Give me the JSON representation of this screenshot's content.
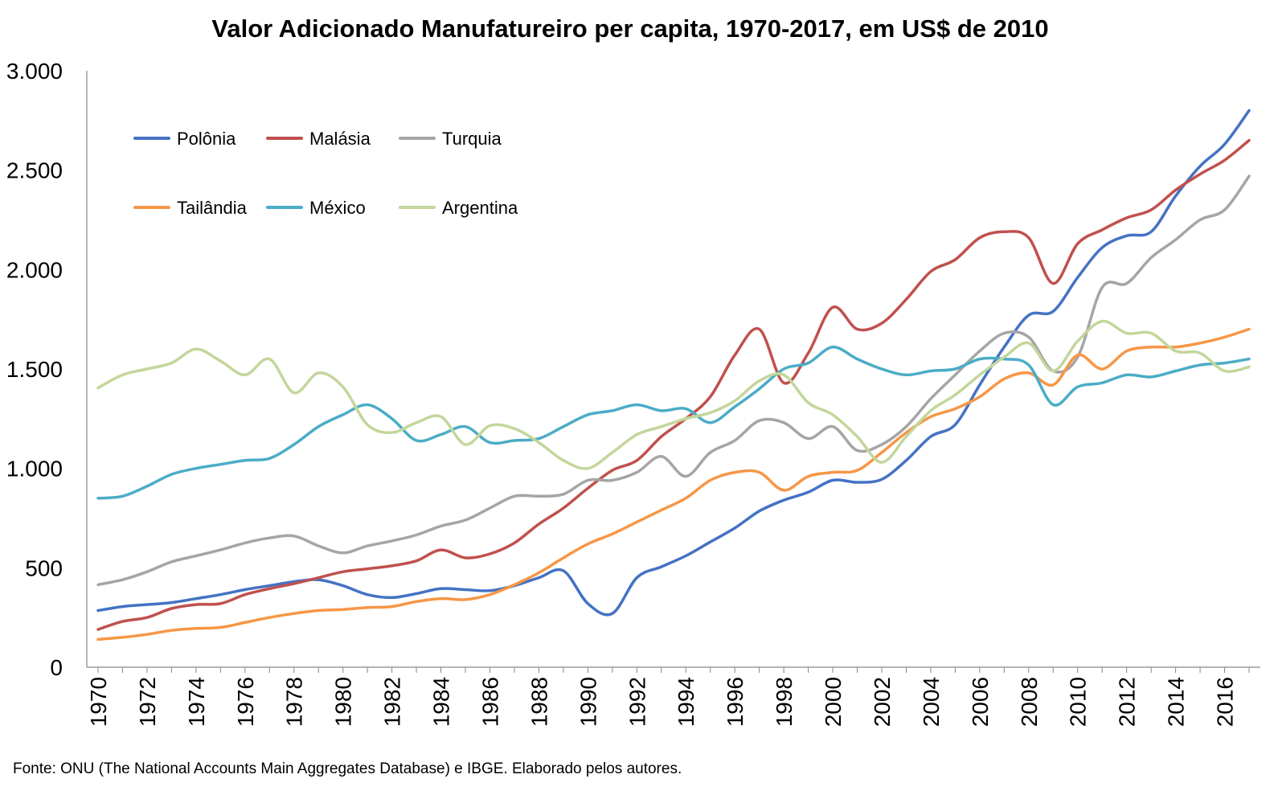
{
  "chart_data": {
    "type": "line",
    "title": "Valor Adicionado Manufatureiro per capita, 1970-2017, em US$ de 2010",
    "xlabel": "",
    "ylabel": "",
    "x": [
      1970,
      1971,
      1972,
      1973,
      1974,
      1975,
      1976,
      1977,
      1978,
      1979,
      1980,
      1981,
      1982,
      1983,
      1984,
      1985,
      1986,
      1987,
      1988,
      1989,
      1990,
      1991,
      1992,
      1993,
      1994,
      1995,
      1996,
      1997,
      1998,
      1999,
      2000,
      2001,
      2002,
      2003,
      2004,
      2005,
      2006,
      2007,
      2008,
      2009,
      2010,
      2011,
      2012,
      2013,
      2014,
      2015,
      2016,
      2017
    ],
    "xticks": [
      "1970",
      "1972",
      "1974",
      "1976",
      "1978",
      "1980",
      "1982",
      "1984",
      "1986",
      "1988",
      "1990",
      "1992",
      "1994",
      "1996",
      "1998",
      "2000",
      "2002",
      "2004",
      "2006",
      "2008",
      "2010",
      "2012",
      "2014",
      "2016"
    ],
    "ylim": [
      0,
      3000
    ],
    "yticks": [
      {
        "value": 0,
        "label": "0"
      },
      {
        "value": 500,
        "label": "500"
      },
      {
        "value": 1000,
        "label": "1.000"
      },
      {
        "value": 1500,
        "label": "1.500"
      },
      {
        "value": 2000,
        "label": "2.000"
      },
      {
        "value": 2500,
        "label": "2.500"
      },
      {
        "value": 3000,
        "label": "3.000"
      }
    ],
    "grid": false,
    "legend_position": "top-left",
    "series": [
      {
        "name": "Polônia",
        "color": "#4472C4",
        "values": [
          285,
          305,
          315,
          325,
          345,
          365,
          390,
          410,
          430,
          440,
          410,
          365,
          350,
          370,
          395,
          390,
          385,
          410,
          450,
          485,
          320,
          270,
          450,
          505,
          560,
          630,
          700,
          785,
          840,
          880,
          940,
          930,
          945,
          1040,
          1160,
          1220,
          1420,
          1610,
          1770,
          1790,
          1960,
          2110,
          2170,
          2190,
          2370,
          2520,
          2630,
          2800
        ]
      },
      {
        "name": "Malásia",
        "color": "#C0504D",
        "values": [
          190,
          230,
          250,
          295,
          315,
          320,
          365,
          395,
          420,
          450,
          480,
          495,
          510,
          535,
          590,
          550,
          570,
          625,
          720,
          800,
          900,
          990,
          1040,
          1160,
          1250,
          1360,
          1570,
          1700,
          1430,
          1580,
          1810,
          1700,
          1730,
          1850,
          1990,
          2050,
          2160,
          2190,
          2160,
          1930,
          2130,
          2200,
          2260,
          2300,
          2400,
          2480,
          2550,
          2650
        ]
      },
      {
        "name": "Turquia",
        "color": "#A5A5A5",
        "values": [
          415,
          440,
          480,
          530,
          560,
          590,
          625,
          650,
          660,
          610,
          575,
          610,
          635,
          665,
          710,
          740,
          800,
          860,
          860,
          870,
          940,
          940,
          980,
          1060,
          960,
          1080,
          1140,
          1240,
          1230,
          1150,
          1210,
          1090,
          1120,
          1210,
          1350,
          1470,
          1590,
          1680,
          1660,
          1490,
          1560,
          1910,
          1930,
          2060,
          2150,
          2250,
          2300,
          2470
        ]
      },
      {
        "name": "Tailândia",
        "color": "#F79646",
        "values": [
          140,
          150,
          165,
          185,
          195,
          200,
          225,
          250,
          270,
          285,
          290,
          300,
          305,
          330,
          345,
          340,
          365,
          415,
          475,
          550,
          620,
          670,
          730,
          790,
          850,
          940,
          980,
          980,
          890,
          960,
          980,
          990,
          1080,
          1180,
          1260,
          1300,
          1360,
          1450,
          1480,
          1420,
          1570,
          1500,
          1590,
          1610,
          1610,
          1630,
          1660,
          1700
        ]
      },
      {
        "name": "México",
        "color": "#4BACC6",
        "values": [
          850,
          860,
          910,
          970,
          1000,
          1020,
          1040,
          1050,
          1120,
          1210,
          1270,
          1320,
          1250,
          1140,
          1170,
          1210,
          1130,
          1140,
          1150,
          1210,
          1270,
          1290,
          1320,
          1290,
          1300,
          1230,
          1310,
          1400,
          1500,
          1530,
          1610,
          1550,
          1500,
          1470,
          1490,
          1500,
          1550,
          1550,
          1520,
          1320,
          1410,
          1430,
          1470,
          1460,
          1490,
          1520,
          1530,
          1550
        ]
      },
      {
        "name": "Argentina",
        "color": "#9BBB59",
        "display_color": "#C3D69B",
        "values": [
          1405,
          1470,
          1500,
          1530,
          1600,
          1540,
          1470,
          1550,
          1380,
          1480,
          1410,
          1220,
          1180,
          1230,
          1260,
          1120,
          1215,
          1200,
          1130,
          1040,
          1000,
          1080,
          1170,
          1210,
          1250,
          1280,
          1340,
          1440,
          1470,
          1330,
          1270,
          1160,
          1030,
          1160,
          1290,
          1370,
          1470,
          1560,
          1630,
          1490,
          1640,
          1740,
          1680,
          1680,
          1590,
          1580,
          1490,
          1510
        ]
      }
    ]
  },
  "source": "Fonte: ONU (The National Accounts Main Aggregates Database) e IBGE. Elaborado pelos autores."
}
